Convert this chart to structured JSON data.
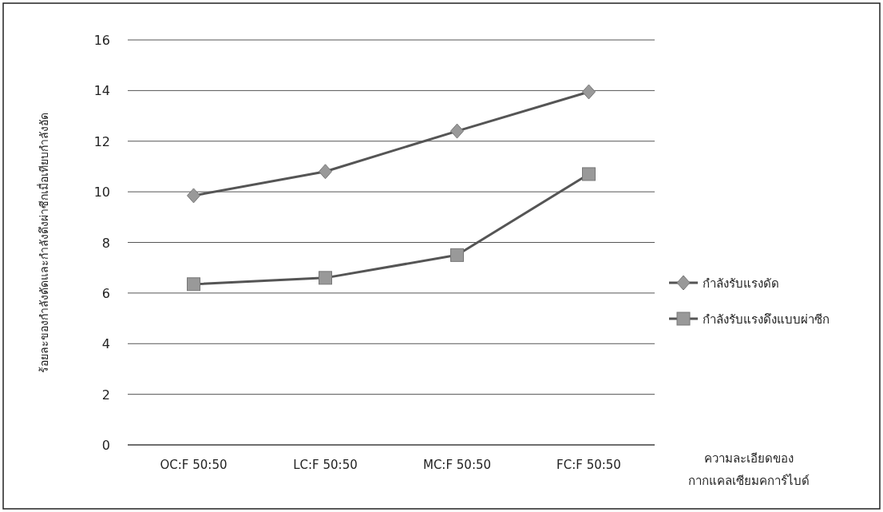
{
  "chart_data": {
    "type": "line",
    "ylabel": "ร้อยละของกำลังดัดและกำลังดึงผ่าซีกเมื่อเทียบกำลังอัด",
    "xlabel": "ความละเอียดของ\nกากแคลเซียมคการ์ไบด์",
    "categories": [
      "OC:F 50:50",
      "LC:F 50:50",
      "MC:F 50:50",
      "FC:F 50:50"
    ],
    "series": [
      {
        "name": "กำลังรับแรงดัด",
        "color": "#999999",
        "marker": "diamond",
        "values": [
          9.85,
          10.8,
          12.4,
          13.95
        ]
      },
      {
        "name": "กำลังรับแรงดึงแบบผ่าซีก",
        "color": "#999999",
        "marker": "square",
        "values": [
          6.35,
          6.6,
          7.5,
          10.7
        ]
      }
    ],
    "ylim": [
      0,
      16
    ],
    "yticks": [
      0,
      2,
      4,
      6,
      8,
      10,
      12,
      14,
      16
    ],
    "grid": "y",
    "legend": "right",
    "line_style": "solid"
  }
}
